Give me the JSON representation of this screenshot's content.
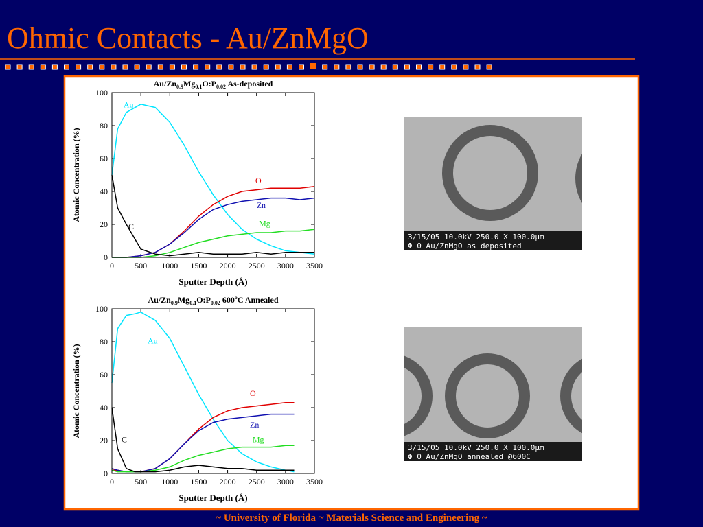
{
  "title": "Ohmic Contacts - Au/ZnMgO",
  "footer": "~ University of Florida ~ Materials Science and Engineering ~",
  "chart_data": [
    {
      "type": "line",
      "title": "Au/Zn0.9Mg0.1O:P0.02 As-deposited",
      "xlabel": "Sputter Depth (Å)",
      "ylabel": "Atomic Concentration (%)",
      "x": [
        0,
        100,
        250,
        500,
        750,
        1000,
        1250,
        1500,
        1750,
        2000,
        2250,
        2500,
        2750,
        3000,
        3250,
        3500
      ],
      "series": [
        {
          "name": "Au",
          "color": "#00e5ff",
          "values": [
            50,
            78,
            88,
            93,
            91,
            82,
            68,
            52,
            38,
            26,
            17,
            11,
            7,
            4,
            3,
            2
          ]
        },
        {
          "name": "O",
          "color": "#e00000",
          "values": [
            0,
            0,
            0,
            1,
            3,
            8,
            16,
            25,
            32,
            37,
            40,
            41,
            42,
            42,
            42,
            43
          ]
        },
        {
          "name": "Zn",
          "color": "#1010b0",
          "values": [
            0,
            0,
            0,
            1,
            3,
            8,
            15,
            23,
            29,
            32,
            34,
            35,
            36,
            36,
            35,
            36
          ]
        },
        {
          "name": "Mg",
          "color": "#22dd22",
          "values": [
            0,
            0,
            0,
            0,
            1,
            3,
            6,
            9,
            11,
            13,
            14,
            15,
            15,
            16,
            16,
            17
          ]
        },
        {
          "name": "C",
          "color": "#000000",
          "values": [
            50,
            30,
            20,
            5,
            2,
            1,
            2,
            3,
            2,
            2,
            2,
            3,
            2,
            3,
            3,
            3
          ]
        }
      ],
      "xlim": [
        0,
        3500
      ],
      "ylim": [
        0,
        100
      ],
      "xticks": [
        0,
        500,
        1000,
        1500,
        2000,
        2500,
        3000,
        3500
      ],
      "yticks": [
        0,
        20,
        40,
        60,
        80,
        100
      ]
    },
    {
      "type": "line",
      "title": "Au/Zn0.9Mg0.1O:P0.02 600ºC Annealed",
      "xlabel": "Sputter Depth (Å)",
      "ylabel": "Atomic Concentration (%)",
      "x": [
        0,
        100,
        250,
        400,
        500,
        750,
        1000,
        1250,
        1500,
        1750,
        2000,
        2250,
        2500,
        2750,
        3000,
        3150
      ],
      "series": [
        {
          "name": "Au",
          "color": "#00e5ff",
          "values": [
            55,
            88,
            96,
            97,
            98,
            93,
            82,
            65,
            48,
            33,
            20,
            12,
            7,
            4,
            2,
            1
          ]
        },
        {
          "name": "O",
          "color": "#e00000",
          "values": [
            2,
            2,
            1,
            1,
            1,
            3,
            9,
            18,
            27,
            34,
            38,
            40,
            41,
            42,
            43,
            43
          ]
        },
        {
          "name": "Zn",
          "color": "#1010b0",
          "values": [
            3,
            2,
            1,
            1,
            1,
            3,
            9,
            18,
            26,
            31,
            33,
            34,
            35,
            36,
            36,
            36
          ]
        },
        {
          "name": "Mg",
          "color": "#22dd22",
          "values": [
            2,
            1,
            1,
            1,
            1,
            2,
            4,
            8,
            11,
            13,
            15,
            16,
            16,
            16,
            17,
            17
          ]
        },
        {
          "name": "C",
          "color": "#000000",
          "values": [
            40,
            15,
            3,
            1,
            1,
            1,
            2,
            4,
            5,
            4,
            3,
            3,
            2,
            2,
            2,
            2
          ]
        }
      ],
      "xlim": [
        0,
        3500
      ],
      "ylim": [
        0,
        100
      ],
      "xticks": [
        0,
        500,
        1000,
        1500,
        2000,
        2500,
        3000,
        3500
      ],
      "yticks": [
        0,
        20,
        40,
        60,
        80,
        100
      ]
    }
  ],
  "images": [
    {
      "caption": [
        "3/15/05 10.0kV 250.0 X 100.0µm",
        "Φ 0 Au/ZnMgO as deposited"
      ]
    },
    {
      "caption": [
        "3/15/05 10.0kV 250.0 X 100.0µm",
        "Φ 0 Au/ZnMgO annealed @600C"
      ]
    }
  ]
}
